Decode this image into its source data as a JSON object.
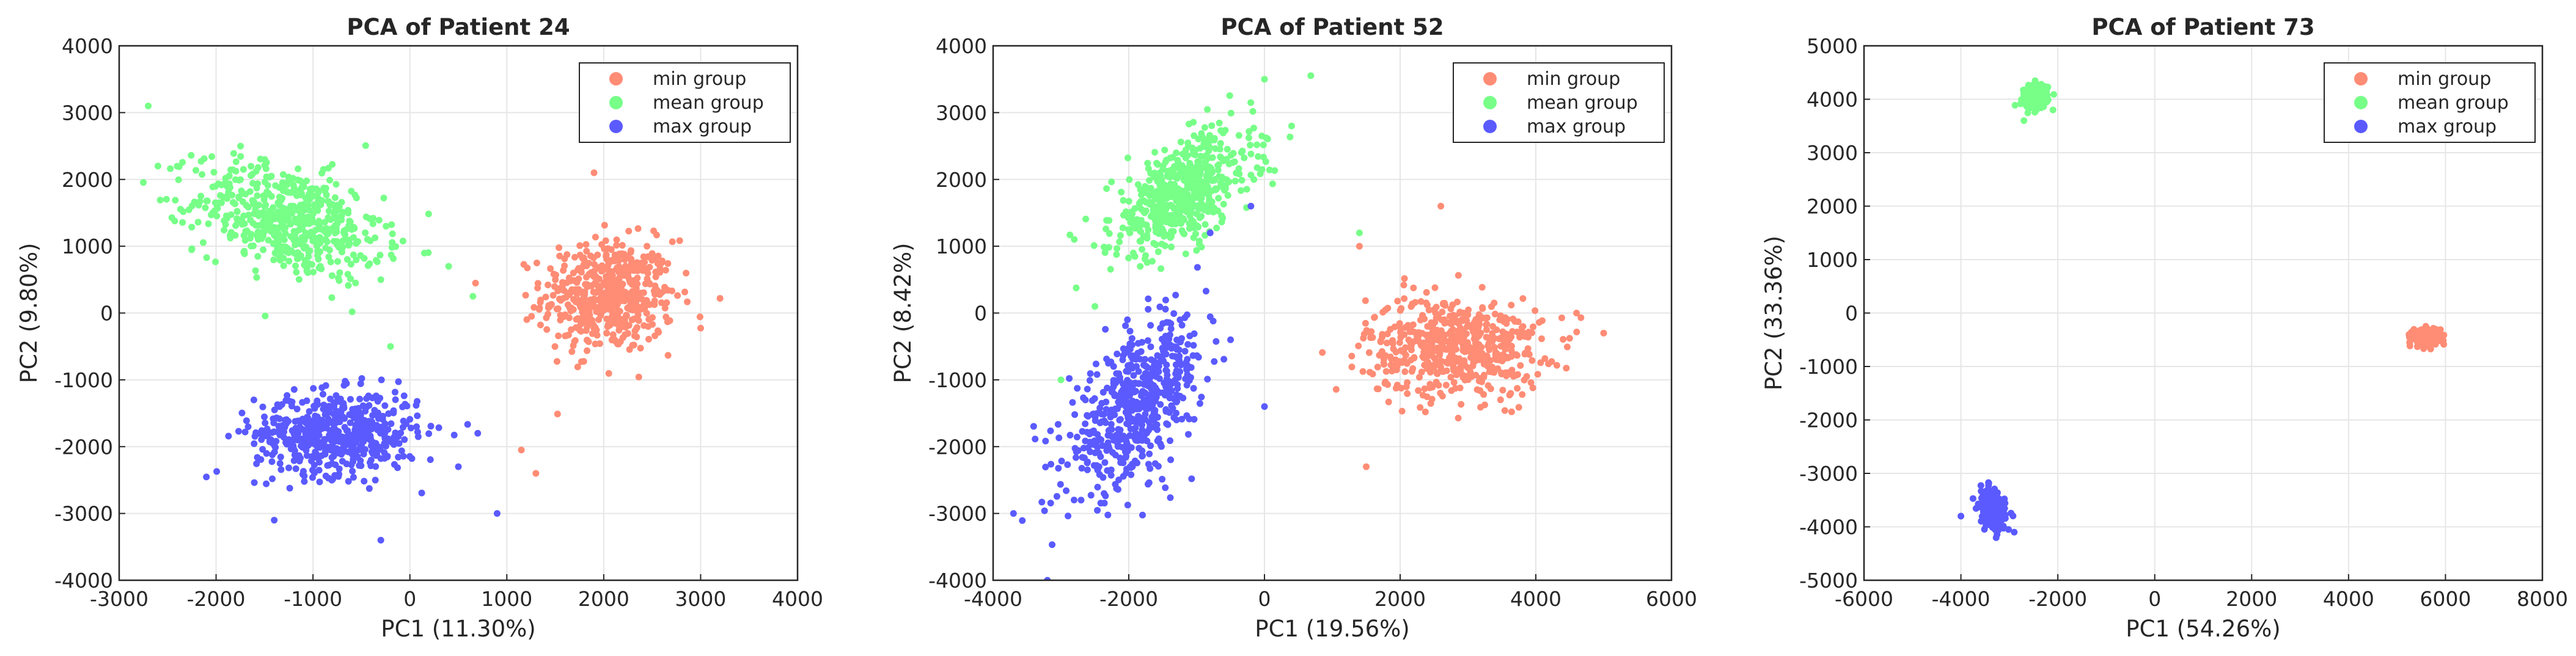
{
  "figure": {
    "description_free": true
  },
  "chart_data": [
    {
      "type": "scatter",
      "title": "PCA of Patient 24",
      "xlabel": "PC1 (11.30%)",
      "ylabel": "PC2 (9.80%)",
      "xlim": [
        -3000,
        4000
      ],
      "ylim": [
        -4000,
        4000
      ],
      "xticks": [
        -3000,
        -2000,
        -1000,
        0,
        1000,
        2000,
        3000,
        4000
      ],
      "yticks": [
        -4000,
        -3000,
        -2000,
        -1000,
        0,
        1000,
        2000,
        3000,
        4000
      ],
      "grid": true,
      "legend_position": "top-right",
      "series": [
        {
          "name": "min group",
          "color": "#ff8c75",
          "center": [
            2050,
            250
          ],
          "spread": [
            340,
            420
          ],
          "corr": 0.0,
          "n": 520,
          "outliers": [
            [
              1300,
              -2400
            ],
            [
              1150,
              -2050
            ],
            [
              3200,
              220
            ],
            [
              1900,
              2100
            ]
          ]
        },
        {
          "name": "mean group",
          "color": "#77ff88",
          "center": [
            -1250,
            1400
          ],
          "spread": [
            480,
            420
          ],
          "corr": -0.35,
          "n": 560,
          "outliers": [
            [
              -2700,
              3100
            ],
            [
              -2600,
              2200
            ],
            [
              -300,
              500
            ],
            [
              400,
              700
            ],
            [
              650,
              250
            ],
            [
              -200,
              -500
            ]
          ]
        },
        {
          "name": "max group",
          "color": "#5a5aff",
          "center": [
            -750,
            -1800
          ],
          "spread": [
            420,
            310
          ],
          "corr": 0.0,
          "n": 560,
          "outliers": [
            [
              900,
              -3000
            ],
            [
              700,
              -1800
            ],
            [
              -1400,
              -3100
            ],
            [
              -300,
              -3400
            ],
            [
              500,
              -2300
            ]
          ]
        }
      ]
    },
    {
      "type": "scatter",
      "title": "PCA of Patient 52",
      "xlabel": "PC1 (19.56%)",
      "ylabel": "PC2 (8.42%)",
      "xlim": [
        -4000,
        6000
      ],
      "ylim": [
        -4000,
        4000
      ],
      "xticks": [
        -4000,
        -2000,
        0,
        2000,
        4000,
        6000
      ],
      "yticks": [
        -4000,
        -3000,
        -2000,
        -1000,
        0,
        1000,
        2000,
        3000,
        4000
      ],
      "grid": true,
      "legend_position": "top-right",
      "series": [
        {
          "name": "min group",
          "color": "#ff8c75",
          "center": [
            2800,
            -500
          ],
          "spread": [
            650,
            370
          ],
          "corr": 0.0,
          "n": 560,
          "outliers": [
            [
              5000,
              -300
            ],
            [
              1400,
              1000
            ],
            [
              1500,
              -2300
            ],
            [
              4600,
              0
            ],
            [
              2600,
              1600
            ]
          ]
        },
        {
          "name": "mean group",
          "color": "#77ff88",
          "center": [
            -1200,
            1800
          ],
          "spread": [
            520,
            460
          ],
          "corr": 0.55,
          "n": 560,
          "outliers": [
            [
              -3000,
              -1000
            ],
            [
              1400,
              1200
            ],
            [
              400,
              2800
            ],
            [
              0,
              3500
            ],
            [
              -2500,
              100
            ]
          ]
        },
        {
          "name": "max group",
          "color": "#5a5aff",
          "center": [
            -1900,
            -1400
          ],
          "spread": [
            500,
            620
          ],
          "corr": 0.6,
          "n": 560,
          "outliers": [
            [
              -3200,
              -4000
            ],
            [
              -3700,
              -3000
            ],
            [
              0,
              -1400
            ],
            [
              -500,
              -400
            ],
            [
              -800,
              1200
            ],
            [
              -200,
              1600
            ]
          ]
        }
      ]
    },
    {
      "type": "scatter",
      "title": "PCA of Patient 73",
      "xlabel": "PC1 (54.26%)",
      "ylabel": "PC2 (33.36%)",
      "xlim": [
        -6000,
        8000
      ],
      "ylim": [
        -5000,
        5000
      ],
      "xticks": [
        -6000,
        -4000,
        -2000,
        0,
        2000,
        4000,
        6000,
        8000
      ],
      "yticks": [
        -5000,
        -4000,
        -3000,
        -2000,
        -1000,
        0,
        1000,
        2000,
        3000,
        4000,
        5000
      ],
      "grid": true,
      "legend_position": "top-right",
      "series": [
        {
          "name": "min group",
          "color": "#ff8c75",
          "center": [
            5600,
            -430
          ],
          "spread": [
            140,
            75
          ],
          "corr": 0.0,
          "n": 260,
          "outliers": []
        },
        {
          "name": "mean group",
          "color": "#77ff88",
          "center": [
            -2450,
            4050
          ],
          "spread": [
            120,
            110
          ],
          "corr": 0.0,
          "n": 260,
          "outliers": [
            [
              -2100,
              3800
            ],
            [
              -2700,
              3600
            ]
          ]
        },
        {
          "name": "max group",
          "color": "#5a5aff",
          "center": [
            -3350,
            -3680
          ],
          "spread": [
            130,
            180
          ],
          "corr": -0.3,
          "n": 260,
          "outliers": [
            [
              -4000,
              -3800
            ],
            [
              -2900,
              -4100
            ]
          ]
        }
      ]
    }
  ]
}
